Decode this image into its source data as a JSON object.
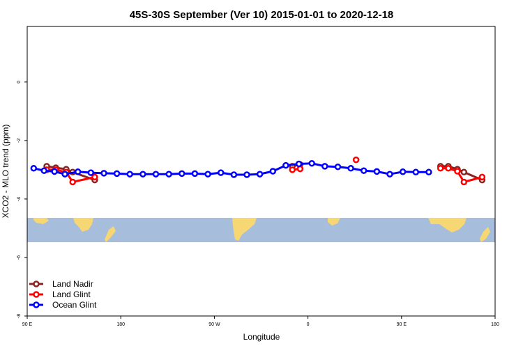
{
  "chart_data": {
    "type": "line",
    "title": "45S-30S September (Ver 10)   2015-01-01 to 2020-12-18",
    "xlabel": "Longitude",
    "ylabel": "XCO2 - MLO trend (ppm)",
    "xlim": [
      90,
      450
    ],
    "ylim": [
      -8.0,
      1.9
    ],
    "x_ticks": [
      {
        "value": 90,
        "label": "90 E"
      },
      {
        "value": 180,
        "label": "180"
      },
      {
        "value": 270,
        "label": "90 W"
      },
      {
        "value": 360,
        "label": "0"
      },
      {
        "value": 450,
        "label": "90 E"
      },
      {
        "value": 540,
        "label": "180"
      }
    ],
    "y_ticks": [
      {
        "value": 0,
        "label": "0"
      },
      {
        "value": -2,
        "label": "-2"
      },
      {
        "value": -4,
        "label": "-4"
      },
      {
        "value": -6,
        "label": "-6"
      },
      {
        "value": -8,
        "label": "-8"
      }
    ],
    "x_axis_scale": "0.5 data units per longitude degree (axis spans 90 E to 180 across the 90-450 data range)",
    "grid": false,
    "legend_position": "bottom-left",
    "map_band": {
      "ylim": [
        -4.8,
        -5.6
      ],
      "ocean_color": "#a6bddb",
      "land_color": "#f7d774"
    },
    "series": [
      {
        "name": "Land Nadir",
        "color": "#8b2323",
        "points": [
          [
            105,
            -2.88
          ],
          [
            112,
            -2.93
          ],
          [
            120,
            -2.98
          ],
          [
            125,
            -3.08
          ],
          [
            142,
            -3.35
          ],
          [
            294,
            -2.88
          ],
          [
            300,
            -2.82
          ],
          [
            408,
            -2.88
          ],
          [
            414,
            -2.88
          ],
          [
            421,
            -2.98
          ],
          [
            426,
            -3.08
          ],
          [
            440,
            -3.35
          ]
        ]
      },
      {
        "name": "Land Glint",
        "color": "#ff0000",
        "points": [
          [
            105,
            -3.0
          ],
          [
            112,
            -3.0
          ],
          [
            120,
            -3.08
          ],
          [
            125,
            -3.42
          ],
          [
            142,
            -3.25
          ],
          [
            294,
            -3.0
          ],
          [
            300,
            -2.97
          ],
          [
            343,
            -2.66
          ],
          [
            408,
            -2.95
          ],
          [
            414,
            -2.95
          ],
          [
            421,
            -3.05
          ],
          [
            426,
            -3.42
          ],
          [
            440,
            -3.25
          ]
        ]
      },
      {
        "name": "Ocean Glint",
        "color": "#0000ff",
        "points": [
          [
            95,
            -2.95
          ],
          [
            103,
            -3.03
          ],
          [
            111,
            -3.06
          ],
          [
            119,
            -3.15
          ],
          [
            129,
            -3.07
          ],
          [
            139,
            -3.1
          ],
          [
            149,
            -3.12
          ],
          [
            159,
            -3.13
          ],
          [
            169,
            -3.15
          ],
          [
            179,
            -3.15
          ],
          [
            189,
            -3.15
          ],
          [
            199,
            -3.15
          ],
          [
            209,
            -3.13
          ],
          [
            219,
            -3.13
          ],
          [
            229,
            -3.15
          ],
          [
            239,
            -3.1
          ],
          [
            249,
            -3.17
          ],
          [
            259,
            -3.17
          ],
          [
            269,
            -3.15
          ],
          [
            279,
            -3.05
          ],
          [
            289,
            -2.85
          ],
          [
            299,
            -2.8
          ],
          [
            309,
            -2.78
          ],
          [
            319,
            -2.88
          ],
          [
            329,
            -2.9
          ],
          [
            339,
            -2.95
          ],
          [
            349,
            -3.03
          ],
          [
            359,
            -3.06
          ],
          [
            369,
            -3.15
          ],
          [
            379,
            -3.07
          ],
          [
            389,
            -3.08
          ],
          [
            399,
            -3.08
          ]
        ]
      }
    ]
  }
}
